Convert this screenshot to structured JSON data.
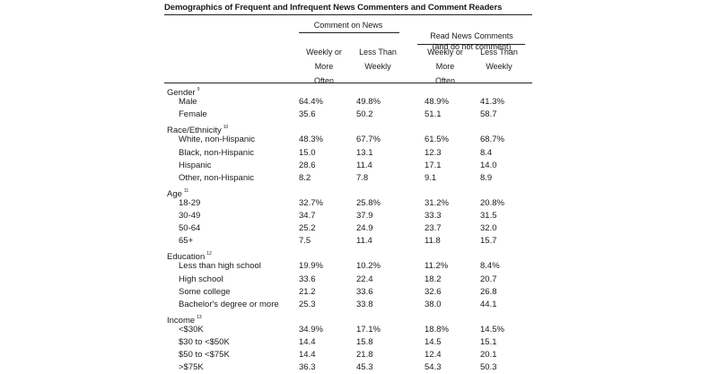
{
  "title": "Demographics of Frequent and Infrequent News Commenters and Comment Readers",
  "groups": [
    {
      "label": "Comment on News"
    },
    {
      "label": "Read News Comments\n(and do not comment)"
    }
  ],
  "columns": [
    "Weekly or\nMore\nOften",
    "Less Than\nWeekly",
    "Weekly or\nMore\nOften",
    "Less Than\nWeekly"
  ],
  "rows": [
    {
      "type": "section",
      "label": "Gender",
      "note": "9"
    },
    {
      "type": "item",
      "label": "Male",
      "values": [
        "64.4%",
        "49.8%",
        "48.9%",
        "41.3%"
      ]
    },
    {
      "type": "item",
      "label": "Female",
      "values": [
        "35.6",
        "50.2",
        "51.1",
        "58.7"
      ]
    },
    {
      "type": "section",
      "label": "Race/Ethnicity",
      "note": "10"
    },
    {
      "type": "item",
      "label": "White, non-Hispanic",
      "values": [
        "48.3%",
        "67.7%",
        "61.5%",
        "68.7%"
      ]
    },
    {
      "type": "item",
      "label": "Black, non-Hispanic",
      "values": [
        "15.0",
        "13.1",
        "12.3",
        "8.4"
      ]
    },
    {
      "type": "item",
      "label": "Hispanic",
      "values": [
        "28.6",
        "11.4",
        "17.1",
        "14.0"
      ]
    },
    {
      "type": "item",
      "label": "Other, non-Hispanic",
      "values": [
        "8.2",
        "7.8",
        "9.1",
        "8.9"
      ]
    },
    {
      "type": "section",
      "label": "Age",
      "note": "11"
    },
    {
      "type": "item",
      "label": "18-29",
      "values": [
        "32.7%",
        "25.8%",
        "31.2%",
        "20.8%"
      ]
    },
    {
      "type": "item",
      "label": "30-49",
      "values": [
        "34.7",
        "37.9",
        "33.3",
        "31.5"
      ]
    },
    {
      "type": "item",
      "label": "50-64",
      "values": [
        "25.2",
        "24.9",
        "23.7",
        "32.0"
      ]
    },
    {
      "type": "item",
      "label": "65+",
      "values": [
        "7.5",
        "11.4",
        "11.8",
        "15.7"
      ]
    },
    {
      "type": "section",
      "label": "Education",
      "note": "12"
    },
    {
      "type": "item",
      "label": "Less than high school",
      "values": [
        "19.9%",
        "10.2%",
        "11.2%",
        "8.4%"
      ]
    },
    {
      "type": "item",
      "label": "High school",
      "values": [
        "33.6",
        "22.4",
        "18.2",
        "20.7"
      ]
    },
    {
      "type": "item",
      "label": "Some college",
      "values": [
        "21.2",
        "33.6",
        "32.6",
        "26.8"
      ]
    },
    {
      "type": "item",
      "label": "Bachelor's degree or more",
      "values": [
        "25.3",
        "33.8",
        "38.0",
        "44.1"
      ]
    },
    {
      "type": "section",
      "label": "Income",
      "note": "13"
    },
    {
      "type": "item",
      "label": "<$30K",
      "values": [
        "34.9%",
        "17.1%",
        "18.8%",
        "14.5%"
      ]
    },
    {
      "type": "item",
      "label": "$30 to <$50K",
      "values": [
        "14.4",
        "15.8",
        "14.5",
        "15.1"
      ]
    },
    {
      "type": "item",
      "label": "$50 to <$75K",
      "values": [
        "14.4",
        "21.8",
        "12.4",
        "20.1"
      ]
    },
    {
      "type": "item",
      "label": ">$75K",
      "values": [
        "36.3",
        "45.3",
        "54.3",
        "50.3"
      ]
    }
  ]
}
